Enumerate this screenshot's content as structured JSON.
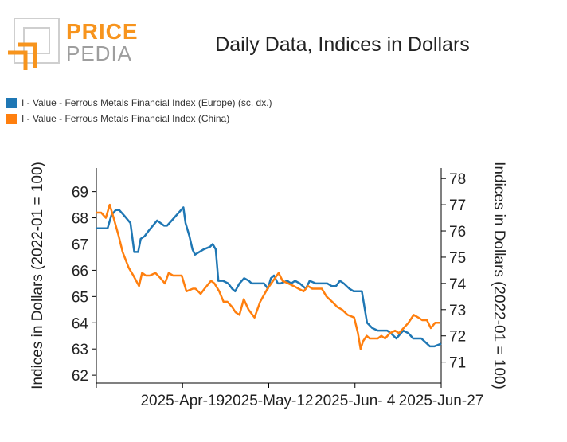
{
  "brand": {
    "word1": "PRICE",
    "word2": "PEDIA"
  },
  "colors": {
    "europe": "#1f77b4",
    "china": "#ff7f0e",
    "logo_orange": "#f7941d",
    "logo_grey": "#9e9e9e"
  },
  "chart_data": {
    "type": "line",
    "title": "Daily Data, Indices in Dollars",
    "ylabel_left": "Indices in Dollars (2022-01 = 100)",
    "ylabel_right": "Indices in Dollars (2022-01 = 100)",
    "y_left_ticks": [
      62,
      63,
      64,
      65,
      66,
      67,
      68,
      69
    ],
    "y_left_range": [
      61.7,
      69.9
    ],
    "y_right_ticks": [
      71,
      72,
      73,
      74,
      75,
      76,
      77,
      78
    ],
    "y_right_range": [
      70.2,
      78.4
    ],
    "x_range": [
      0,
      80
    ],
    "x_ticks": [
      {
        "x": 0,
        "label": ""
      },
      {
        "x": 20,
        "label": "2025-Apr-19"
      },
      {
        "x": 40,
        "label": "2025-May-12"
      },
      {
        "x": 60,
        "label": "2025-Jun- 4"
      },
      {
        "x": 80,
        "label": "2025-Jun-27"
      }
    ],
    "series": [
      {
        "name": "I - Value - Ferrous Metals Financial Index (Europe) (sc. dx.)",
        "axis": "right",
        "color": "#1f77b4",
        "x": [
          0,
          2.6,
          3.5,
          4.5,
          5.3,
          6.4,
          7.9,
          8.8,
          9.7,
          10.3,
          11.2,
          12.1,
          14.1,
          15.7,
          16.4,
          17.5,
          20.2,
          20.7,
          21.6,
          22.3,
          22.9,
          24.9,
          26.4,
          27.0,
          27.7,
          28.3,
          29.4,
          30.6,
          31.5,
          32.2,
          33.2,
          34.3,
          35.4,
          36.0,
          37.1,
          37.8,
          38.9,
          39.8,
          40.5,
          41.2,
          42.1,
          42.7,
          44.3,
          45.2,
          46.1,
          47.2,
          48.6,
          49.5,
          50.9,
          52.5,
          53.6,
          54.6,
          55.6,
          56.5,
          57.4,
          58.7,
          59.7,
          61.6,
          62.8,
          64.0,
          65.3,
          66.2,
          67.5,
          68.3,
          69.6,
          71.2,
          72.4,
          73.5,
          74.2,
          75.4,
          77.4,
          78.4,
          80.0
        ],
        "y": [
          76.1,
          76.1,
          76.6,
          76.8,
          76.8,
          76.6,
          76.3,
          75.2,
          75.2,
          75.7,
          75.8,
          76.0,
          76.4,
          76.2,
          76.2,
          76.4,
          76.9,
          76.3,
          75.8,
          75.3,
          75.1,
          75.3,
          75.4,
          75.5,
          75.3,
          74.1,
          74.1,
          74.0,
          73.8,
          73.7,
          74.0,
          74.2,
          74.1,
          74.0,
          74.0,
          74.0,
          74.0,
          73.8,
          74.2,
          74.3,
          74.0,
          74.0,
          74.1,
          74.0,
          74.1,
          74.0,
          73.8,
          74.1,
          74.0,
          74.0,
          74.0,
          73.9,
          73.9,
          74.1,
          74.0,
          73.8,
          73.7,
          73.7,
          72.5,
          72.3,
          72.2,
          72.2,
          72.2,
          72.1,
          71.9,
          72.2,
          72.1,
          71.9,
          71.9,
          71.9,
          71.6,
          71.6,
          71.7
        ]
      },
      {
        "name": "I - Value - Ferrous Metals Financial Index (China)",
        "axis": "left",
        "color": "#ff7f0e",
        "x": [
          0,
          1.1,
          2.2,
          3.1,
          4.0,
          5.2,
          6.1,
          7.5,
          8.6,
          9.9,
          10.6,
          11.5,
          12.4,
          13.7,
          14.9,
          15.9,
          16.8,
          17.8,
          18.6,
          19.8,
          20.9,
          22.4,
          23.0,
          24.2,
          25.1,
          26.6,
          27.4,
          28.5,
          29.5,
          30.4,
          31.5,
          32.3,
          33.2,
          34.2,
          35.3,
          36.7,
          38.0,
          39.7,
          41.0,
          42.3,
          43.2,
          44.5,
          45.8,
          46.9,
          48.1,
          49.1,
          50.1,
          51.0,
          52.3,
          53.4,
          54.7,
          55.9,
          57.0,
          58.3,
          59.8,
          60.7,
          61.3,
          61.9,
          62.7,
          63.4,
          64.2,
          65.3,
          66.1,
          67.0,
          68.1,
          69.3,
          70.2,
          71.3,
          72.4,
          73.6,
          74.7,
          75.6,
          76.7,
          77.6,
          78.6,
          79.7
        ],
        "y": [
          68.2,
          68.2,
          68.0,
          68.5,
          68.0,
          67.3,
          66.7,
          66.1,
          65.8,
          65.4,
          65.9,
          65.8,
          65.8,
          65.9,
          65.7,
          65.5,
          65.9,
          65.8,
          65.8,
          65.8,
          65.2,
          65.3,
          65.3,
          65.1,
          65.3,
          65.6,
          65.5,
          65.2,
          64.8,
          64.8,
          64.6,
          64.4,
          64.3,
          64.9,
          64.5,
          64.2,
          64.8,
          65.3,
          65.6,
          65.9,
          65.6,
          65.5,
          65.4,
          65.3,
          65.2,
          65.4,
          65.3,
          65.3,
          65.3,
          65.0,
          64.8,
          64.6,
          64.5,
          64.3,
          64.2,
          63.6,
          63.0,
          63.3,
          63.5,
          63.4,
          63.4,
          63.4,
          63.5,
          63.4,
          63.6,
          63.7,
          63.6,
          63.8,
          64.0,
          64.3,
          64.2,
          64.1,
          64.1,
          63.8,
          64.0,
          64.0
        ]
      }
    ]
  }
}
